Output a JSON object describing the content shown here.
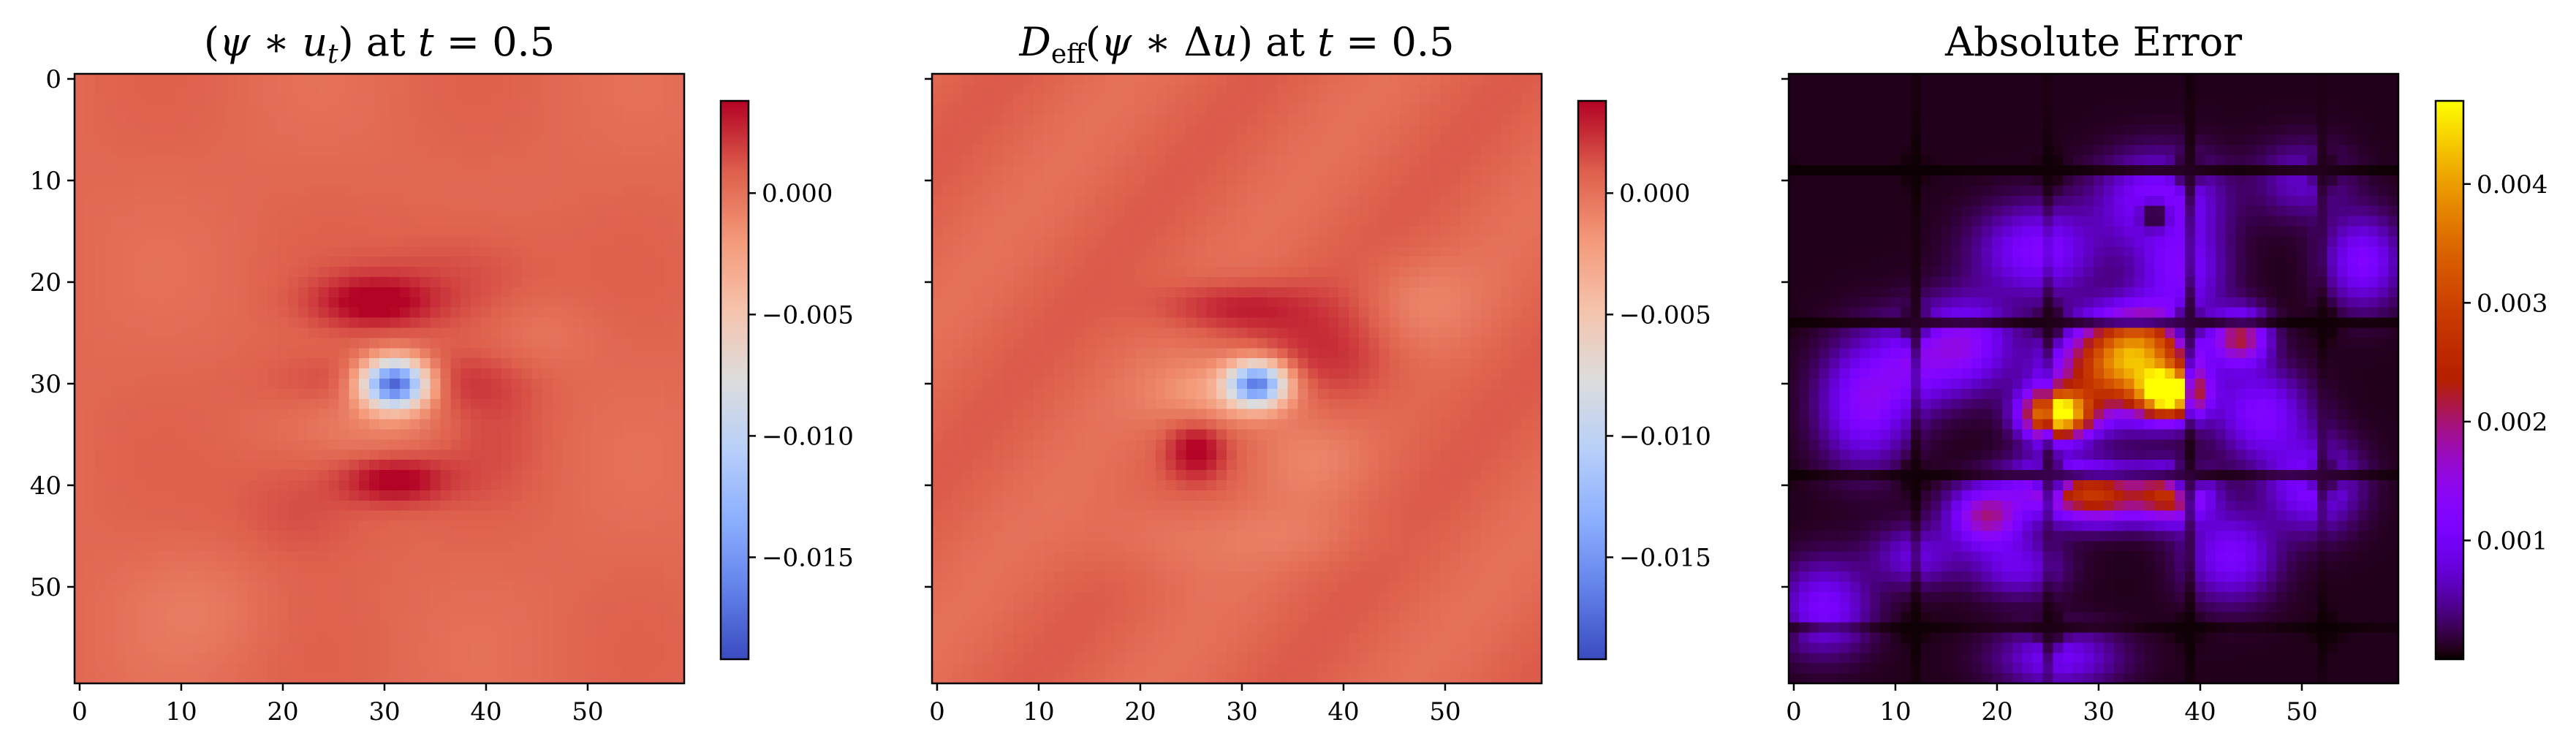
{
  "chart_data": [
    {
      "type": "heatmap",
      "title_html": "(<tspan font-style=\"italic\">ψ</tspan> ∗ <tspan font-style=\"italic\">u</tspan><tspan font-style=\"italic\" font-size=\"36\" dy=\"10\">t</tspan><tspan dy=\"-10\">) at </tspan><tspan font-style=\"italic\">t</tspan> = 0.5",
      "grid_size": [
        60,
        60
      ],
      "xticks": [
        0,
        10,
        20,
        30,
        40,
        50
      ],
      "yticks": [
        0,
        10,
        20,
        30,
        40,
        50
      ],
      "colormap": "coolwarm",
      "colorbar": {
        "min": -0.0192,
        "max": 0.0038,
        "ticks": [
          0.0,
          -0.005,
          -0.01,
          -0.015
        ],
        "tick_labels": [
          "0.000",
          "−0.005",
          "−0.010",
          "−0.015"
        ]
      },
      "show_yticklabels": true
    },
    {
      "type": "heatmap",
      "title_html": "<tspan font-style=\"italic\">D</tspan><tspan font-size=\"36\" dy=\"10\">eff</tspan><tspan dy=\"-10\">(</tspan><tspan font-style=\"italic\">ψ</tspan> ∗ Δ<tspan font-style=\"italic\">u</tspan>) at <tspan font-style=\"italic\">t</tspan> = 0.5",
      "grid_size": [
        60,
        60
      ],
      "xticks": [
        0,
        10,
        20,
        30,
        40,
        50
      ],
      "yticks": [
        0,
        10,
        20,
        30,
        40,
        50
      ],
      "colormap": "coolwarm",
      "colorbar": {
        "min": -0.0192,
        "max": 0.0038,
        "ticks": [
          0.0,
          -0.005,
          -0.01,
          -0.015
        ],
        "tick_labels": [
          "0.000",
          "−0.005",
          "−0.010",
          "−0.015"
        ]
      },
      "show_yticklabels": false
    },
    {
      "type": "heatmap",
      "title": "Absolute Error",
      "grid_size": [
        60,
        60
      ],
      "xticks": [
        0,
        10,
        20,
        30,
        40,
        50
      ],
      "yticks": [
        0,
        10,
        20,
        30,
        40,
        50
      ],
      "colormap": "gnuplot",
      "colorbar": {
        "min": 0.0,
        "max": 0.0047,
        "ticks": [
          0.004,
          0.003,
          0.002,
          0.001
        ],
        "tick_labels": [
          "0.004",
          "0.003",
          "0.002",
          "0.001"
        ]
      },
      "show_yticklabels": false
    }
  ]
}
